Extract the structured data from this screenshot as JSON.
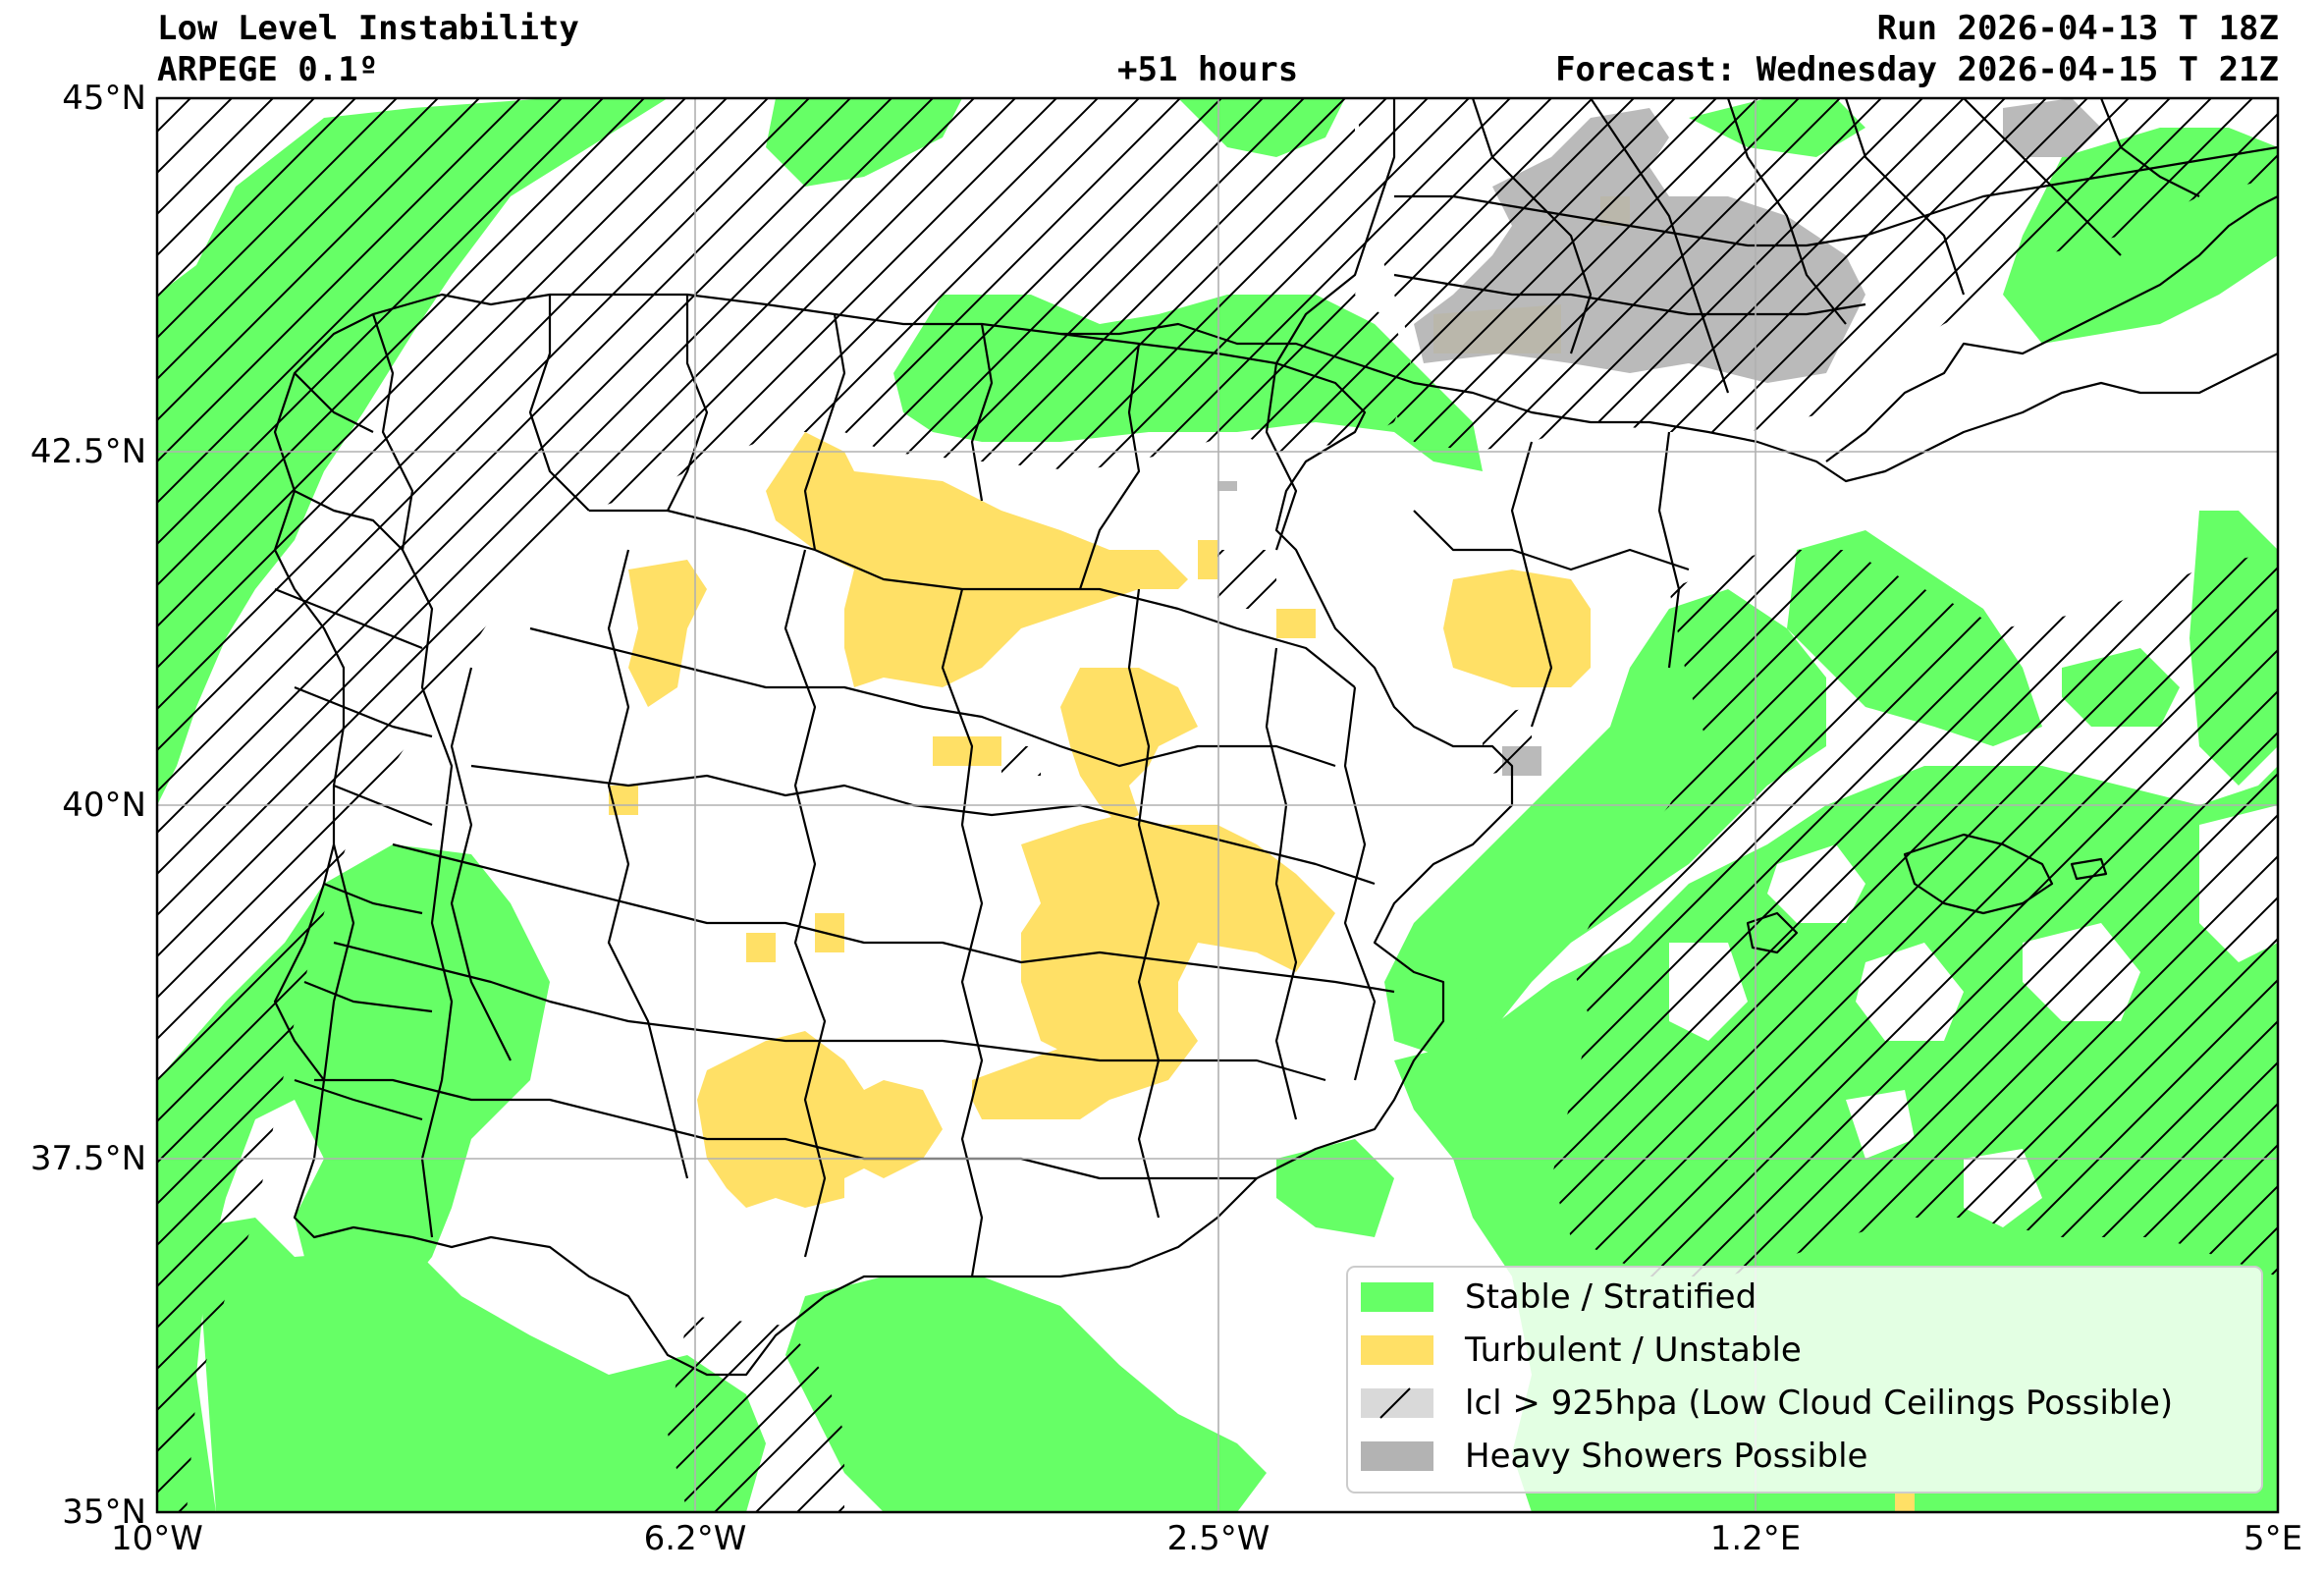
{
  "header": {
    "title": "Low Level Instability",
    "model": "ARPEGE 0.1º",
    "lead_time": "+51 hours",
    "run": "Run 2026-04-13 T 18Z",
    "forecast": "Forecast: Wednesday 2026-04-15 T 21Z"
  },
  "axes": {
    "lon_range": [
      -10.0,
      5.0
    ],
    "lat_range": [
      35.0,
      45.0
    ],
    "grid": true,
    "x_ticks": [
      {
        "value": -10.0,
        "label": "10°W"
      },
      {
        "value": -6.2,
        "label": "6.2°W"
      },
      {
        "value": -2.5,
        "label": "2.5°W"
      },
      {
        "value": 1.2,
        "label": "1.2°E"
      },
      {
        "value": 5.0,
        "label": "5°E"
      }
    ],
    "y_ticks": [
      {
        "value": 45.0,
        "label": "45°N"
      },
      {
        "value": 42.5,
        "label": "42.5°N"
      },
      {
        "value": 40.0,
        "label": "40°N"
      },
      {
        "value": 37.5,
        "label": "37.5°N"
      },
      {
        "value": 35.0,
        "label": "35°N"
      }
    ]
  },
  "legend": {
    "placement": "bottom-right",
    "items": [
      {
        "label": "Stable / Stratified",
        "color": "#66ff66",
        "hatch": false
      },
      {
        "label": "Turbulent / Unstable",
        "color": "#ffe066",
        "hatch": false
      },
      {
        "label": "lcl > 925hpa (Low Cloud Ceilings Possible)",
        "color": "#d9d9d9",
        "hatch": true
      },
      {
        "label": "Heavy Showers Possible",
        "color": "#b3b3b3",
        "hatch": false
      }
    ]
  },
  "colors": {
    "stable": "#66ff66",
    "turbulent": "#ffe066",
    "lcl": "#000000",
    "showers": "#b3b3b3",
    "borders": "#000000",
    "grid": "#b0b0b0"
  }
}
